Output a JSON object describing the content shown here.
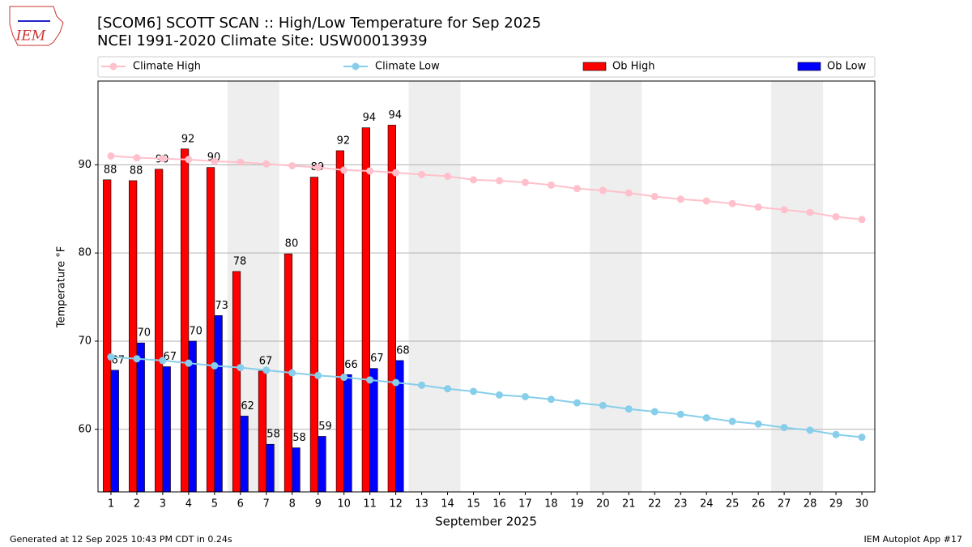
{
  "chart_data": {
    "type": "bar",
    "title": "[SCOM6] SCOTT SCAN :: High/Low Temperature for Sep 2025",
    "subtitle": "NCEI 1991-2020 Climate Site: USW00013939",
    "xlabel": "September 2025",
    "ylabel": "Temperature °F",
    "logo_text": "IEM",
    "footer_left": "Generated at 12 Sep 2025 10:43 PM CDT in 0.24s",
    "footer_right": "IEM Autoplot App #17",
    "x": [
      1,
      2,
      3,
      4,
      5,
      6,
      7,
      8,
      9,
      10,
      11,
      12,
      13,
      14,
      15,
      16,
      17,
      18,
      19,
      20,
      21,
      22,
      23,
      24,
      25,
      26,
      27,
      28,
      29,
      30
    ],
    "xlim": [
      0.5,
      30.5
    ],
    "xticks": [
      1,
      2,
      3,
      4,
      5,
      6,
      7,
      8,
      9,
      10,
      11,
      12,
      13,
      14,
      15,
      16,
      17,
      18,
      19,
      20,
      21,
      22,
      23,
      24,
      25,
      26,
      27,
      28,
      29,
      30
    ],
    "ylim": [
      52.9,
      99.5
    ],
    "yticks": [
      60,
      70,
      80,
      90
    ],
    "grid": true,
    "legend": "top",
    "shaded": [
      6,
      7,
      13,
      14,
      20,
      21,
      27,
      28
    ],
    "series": [
      {
        "name": "Climate High",
        "type": "line",
        "color": "#ffc0cb",
        "values": [
          91.0,
          90.8,
          90.7,
          90.6,
          90.4,
          90.3,
          90.1,
          89.9,
          89.7,
          89.4,
          89.3,
          89.1,
          88.9,
          88.7,
          88.3,
          88.2,
          88.0,
          87.7,
          87.3,
          87.1,
          86.8,
          86.4,
          86.1,
          85.9,
          85.6,
          85.2,
          84.9,
          84.6,
          84.1,
          83.8
        ]
      },
      {
        "name": "Climate Low",
        "type": "line",
        "color": "#87ceeb",
        "values": [
          68.2,
          68.0,
          67.8,
          67.5,
          67.2,
          67.0,
          66.7,
          66.4,
          66.1,
          65.9,
          65.6,
          65.3,
          65.0,
          64.6,
          64.3,
          63.9,
          63.7,
          63.4,
          63.0,
          62.7,
          62.3,
          62.0,
          61.7,
          61.3,
          60.9,
          60.6,
          60.2,
          59.9,
          59.4,
          59.1
        ]
      },
      {
        "name": "Ob High",
        "type": "bar",
        "color": "#ff0000",
        "values": [
          88.3,
          88.2,
          89.5,
          91.8,
          89.7,
          77.9,
          66.6,
          79.9,
          88.6,
          91.6,
          94.2,
          94.5,
          null,
          null,
          null,
          null,
          null,
          null,
          null,
          null,
          null,
          null,
          null,
          null,
          null,
          null,
          null,
          null,
          null,
          null
        ],
        "value_labels": [
          "88",
          "88",
          "90",
          "92",
          "90",
          "78",
          "67",
          "80",
          "89",
          "92",
          "94",
          "94",
          null,
          null,
          null,
          null,
          null,
          null,
          null,
          null,
          null,
          null,
          null,
          null,
          null,
          null,
          null,
          null,
          null,
          null
        ]
      },
      {
        "name": "Ob Low",
        "type": "bar",
        "color": "#0000ff",
        "values": [
          66.7,
          69.8,
          67.1,
          70.0,
          72.9,
          61.5,
          58.3,
          57.9,
          59.2,
          66.2,
          66.9,
          67.8,
          null,
          null,
          null,
          null,
          null,
          null,
          null,
          null,
          null,
          null,
          null,
          null,
          null,
          null,
          null,
          null,
          null,
          null
        ],
        "value_labels": [
          "67",
          "70",
          "67",
          "70",
          "73",
          "62",
          "58",
          "58",
          "59",
          "66",
          "67",
          "68",
          null,
          null,
          null,
          null,
          null,
          null,
          null,
          null,
          null,
          null,
          null,
          null,
          null,
          null,
          null,
          null,
          null,
          null
        ]
      }
    ]
  }
}
